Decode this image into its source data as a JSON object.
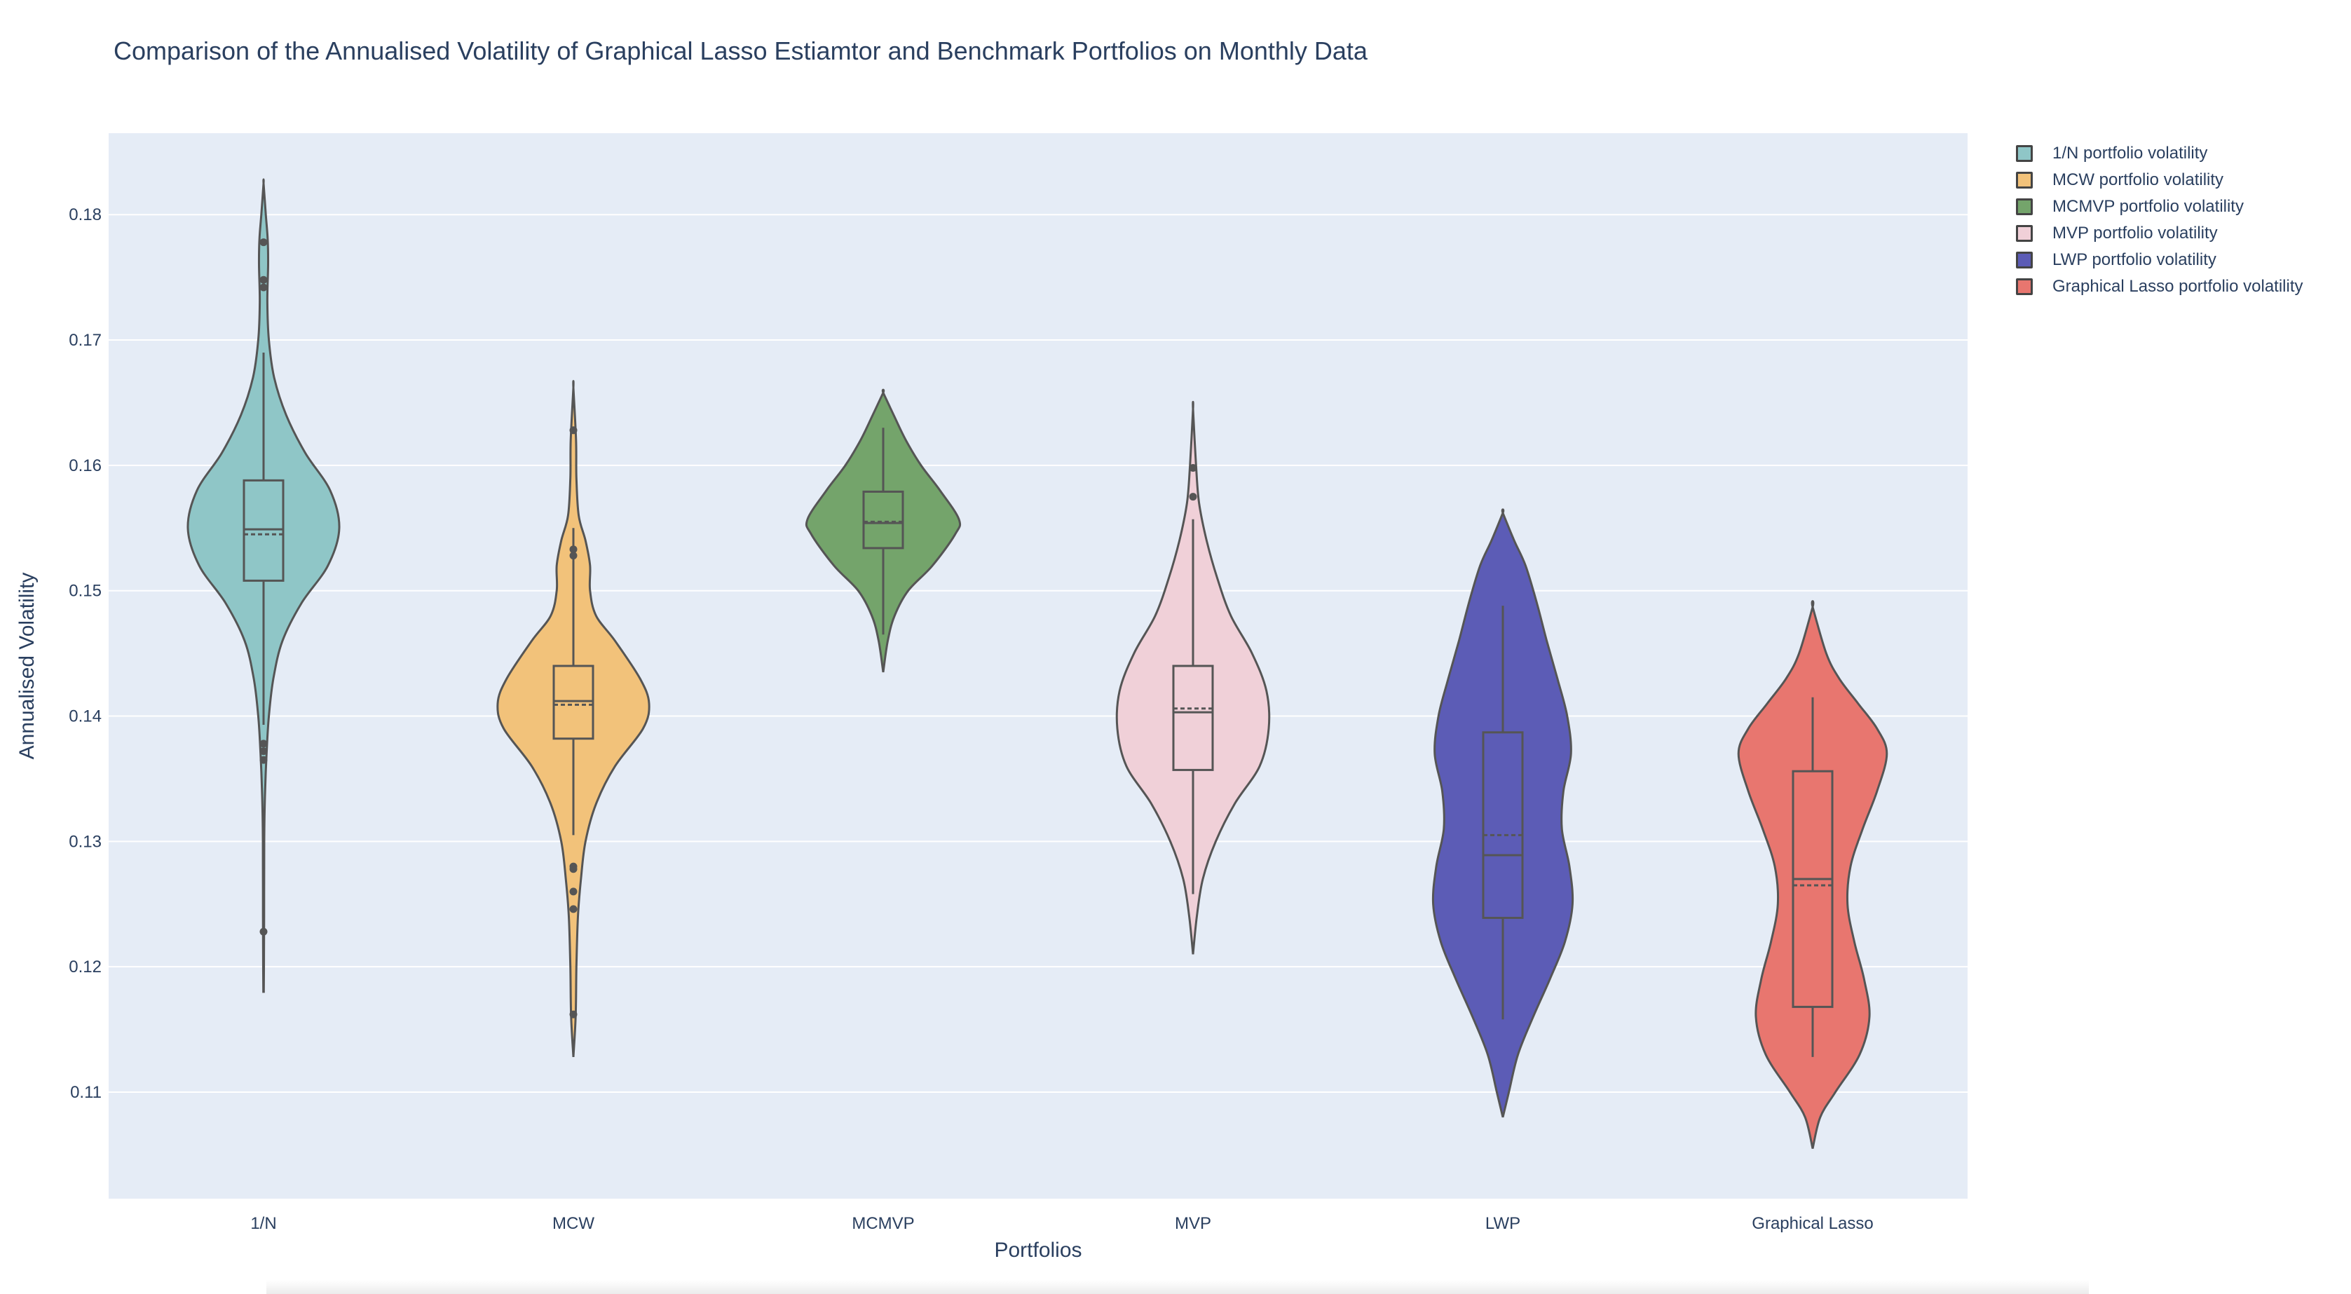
{
  "chart_data": {
    "type": "violin",
    "title": "Comparison of the Annualised Volatility of Graphical Lasso Estiamtor and Benchmark Portfolios on Monthly Data",
    "xlabel": "Portfolios",
    "ylabel": "Annualised Volatility",
    "ylim": [
      0.1015,
      0.1865
    ],
    "yticks": [
      "0.11",
      "0.12",
      "0.13",
      "0.14",
      "0.15",
      "0.16",
      "0.17",
      "0.18"
    ],
    "ytick_values": [
      0.11,
      0.12,
      0.13,
      0.14,
      0.15,
      0.16,
      0.17,
      0.18
    ],
    "categories": [
      "1/N",
      "MCW",
      "MCMVP",
      "MVP",
      "LWP",
      "Graphical Lasso"
    ],
    "grid": true,
    "legend_position": "top-right",
    "plot_background": "#e5ecf6",
    "series": [
      {
        "name": "1/N portfolio volatility",
        "category": "1/N",
        "color": "#8fc6c7",
        "min": 0.118,
        "max": 0.1825,
        "box": {
          "q1": 0.1508,
          "median": 0.1549,
          "mean": 0.1545,
          "q3": 0.1588,
          "lower_fence": 0.1393,
          "upper_fence": 0.169
        },
        "outliers": [
          0.1778,
          0.1748,
          0.1742,
          0.1378,
          0.1372,
          0.1365,
          0.1228
        ],
        "density": [
          [
            0.118,
            0.003
          ],
          [
            0.121,
            0.006
          ],
          [
            0.124,
            0.007
          ],
          [
            0.128,
            0.008
          ],
          [
            0.131,
            0.01
          ],
          [
            0.134,
            0.02
          ],
          [
            0.137,
            0.04
          ],
          [
            0.14,
            0.07
          ],
          [
            0.143,
            0.13
          ],
          [
            0.146,
            0.25
          ],
          [
            0.149,
            0.5
          ],
          [
            0.152,
            0.85
          ],
          [
            0.155,
            1.0
          ],
          [
            0.158,
            0.88
          ],
          [
            0.161,
            0.55
          ],
          [
            0.164,
            0.3
          ],
          [
            0.167,
            0.14
          ],
          [
            0.17,
            0.07
          ],
          [
            0.173,
            0.05
          ],
          [
            0.176,
            0.06
          ],
          [
            0.178,
            0.055
          ],
          [
            0.18,
            0.03
          ],
          [
            0.1825,
            0.0
          ]
        ]
      },
      {
        "name": "MCW portfolio volatility",
        "category": "MCW",
        "color": "#f2c27a",
        "min": 0.1128,
        "max": 0.1662,
        "box": {
          "q1": 0.1382,
          "median": 0.1412,
          "mean": 0.1409,
          "q3": 0.144,
          "lower_fence": 0.1305,
          "upper_fence": 0.155
        },
        "outliers": [
          0.1628,
          0.1533,
          0.1528,
          0.128,
          0.1278,
          0.126,
          0.1246,
          0.1162
        ],
        "density": [
          [
            0.1128,
            0.0
          ],
          [
            0.116,
            0.03
          ],
          [
            0.12,
            0.04
          ],
          [
            0.124,
            0.06
          ],
          [
            0.127,
            0.1
          ],
          [
            0.13,
            0.16
          ],
          [
            0.133,
            0.3
          ],
          [
            0.136,
            0.55
          ],
          [
            0.139,
            0.92
          ],
          [
            0.141,
            1.0
          ],
          [
            0.143,
            0.88
          ],
          [
            0.146,
            0.55
          ],
          [
            0.148,
            0.3
          ],
          [
            0.15,
            0.22
          ],
          [
            0.152,
            0.22
          ],
          [
            0.154,
            0.16
          ],
          [
            0.156,
            0.07
          ],
          [
            0.159,
            0.04
          ],
          [
            0.162,
            0.035
          ],
          [
            0.1662,
            0.0
          ]
        ]
      },
      {
        "name": "MCMVP portfolio volatility",
        "category": "MCMVP",
        "color": "#74a46b",
        "min": 0.1435,
        "max": 0.1658,
        "box": {
          "q1": 0.1534,
          "median": 0.1554,
          "mean": 0.1555,
          "q3": 0.1579,
          "lower_fence": 0.1465,
          "upper_fence": 0.163
        },
        "outliers": [],
        "density": [
          [
            0.1435,
            0.0
          ],
          [
            0.146,
            0.06
          ],
          [
            0.148,
            0.15
          ],
          [
            0.15,
            0.33
          ],
          [
            0.152,
            0.65
          ],
          [
            0.1545,
            0.95
          ],
          [
            0.1557,
            1.0
          ],
          [
            0.158,
            0.75
          ],
          [
            0.16,
            0.5
          ],
          [
            0.162,
            0.3
          ],
          [
            0.164,
            0.14
          ],
          [
            0.1658,
            0.0
          ]
        ]
      },
      {
        "name": "MVP portfolio volatility",
        "category": "MVP",
        "color": "#f0d0d8",
        "min": 0.121,
        "max": 0.1645,
        "box": {
          "q1": 0.1357,
          "median": 0.1403,
          "mean": 0.1406,
          "q3": 0.144,
          "lower_fence": 0.1258,
          "upper_fence": 0.1557
        },
        "outliers": [
          0.1598,
          0.1575
        ],
        "density": [
          [
            0.121,
            0.0
          ],
          [
            0.124,
            0.05
          ],
          [
            0.127,
            0.13
          ],
          [
            0.13,
            0.3
          ],
          [
            0.133,
            0.55
          ],
          [
            0.136,
            0.88
          ],
          [
            0.139,
            1.0
          ],
          [
            0.142,
            0.97
          ],
          [
            0.145,
            0.78
          ],
          [
            0.148,
            0.5
          ],
          [
            0.151,
            0.32
          ],
          [
            0.154,
            0.18
          ],
          [
            0.157,
            0.08
          ],
          [
            0.16,
            0.04
          ],
          [
            0.1645,
            0.0
          ]
        ]
      },
      {
        "name": "LWP portfolio volatility",
        "category": "LWP",
        "color": "#5c5cb6",
        "min": 0.108,
        "max": 0.1562,
        "box": {
          "q1": 0.1239,
          "median": 0.1289,
          "mean": 0.1305,
          "q3": 0.1387,
          "lower_fence": 0.1158,
          "upper_fence": 0.1488
        },
        "outliers": [],
        "density": [
          [
            0.108,
            0.0
          ],
          [
            0.11,
            0.08
          ],
          [
            0.113,
            0.2
          ],
          [
            0.116,
            0.4
          ],
          [
            0.119,
            0.62
          ],
          [
            0.122,
            0.82
          ],
          [
            0.125,
            0.92
          ],
          [
            0.128,
            0.88
          ],
          [
            0.131,
            0.78
          ],
          [
            0.134,
            0.8
          ],
          [
            0.137,
            0.9
          ],
          [
            0.14,
            0.85
          ],
          [
            0.143,
            0.72
          ],
          [
            0.146,
            0.58
          ],
          [
            0.149,
            0.45
          ],
          [
            0.152,
            0.3
          ],
          [
            0.154,
            0.15
          ],
          [
            0.1562,
            0.0
          ]
        ]
      },
      {
        "name": "Graphical Lasso portfolio volatility",
        "category": "Graphical Lasso",
        "color": "#e8766f",
        "min": 0.1055,
        "max": 0.1487,
        "box": {
          "q1": 0.1168,
          "median": 0.127,
          "mean": 0.1265,
          "q3": 0.1356,
          "lower_fence": 0.1128,
          "upper_fence": 0.1415
        },
        "outliers": [],
        "density": [
          [
            0.1055,
            0.0
          ],
          [
            0.108,
            0.1
          ],
          [
            0.11,
            0.3
          ],
          [
            0.113,
            0.62
          ],
          [
            0.116,
            0.75
          ],
          [
            0.119,
            0.68
          ],
          [
            0.122,
            0.55
          ],
          [
            0.125,
            0.46
          ],
          [
            0.128,
            0.5
          ],
          [
            0.131,
            0.66
          ],
          [
            0.134,
            0.85
          ],
          [
            0.137,
            0.98
          ],
          [
            0.139,
            0.85
          ],
          [
            0.141,
            0.6
          ],
          [
            0.143,
            0.35
          ],
          [
            0.145,
            0.18
          ],
          [
            0.1487,
            0.0
          ]
        ]
      }
    ]
  }
}
